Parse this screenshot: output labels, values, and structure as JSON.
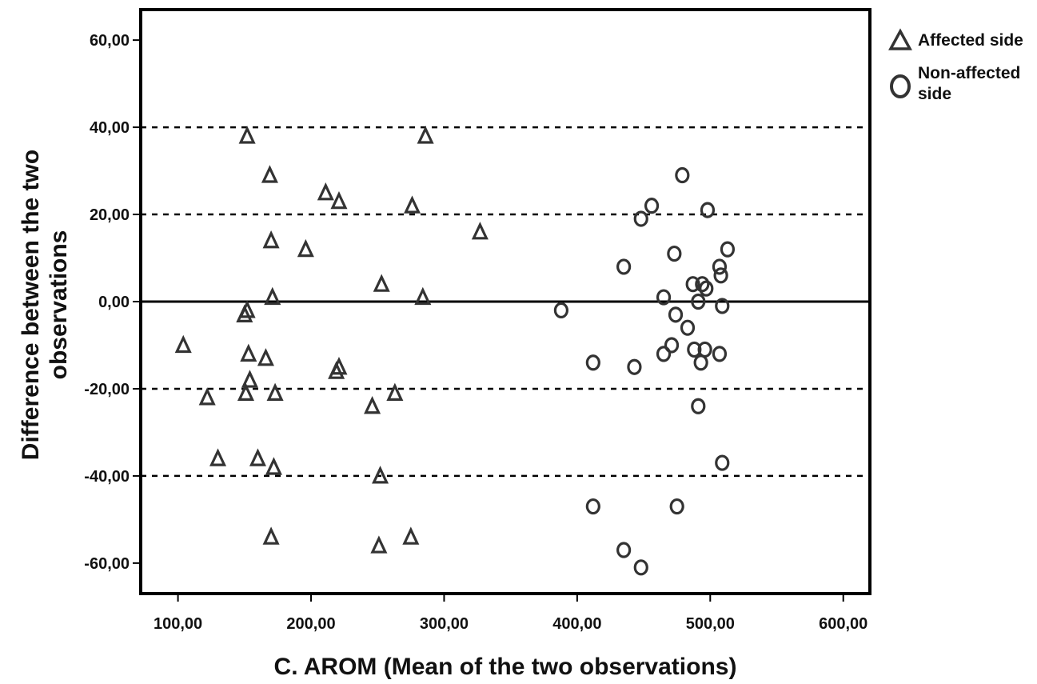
{
  "chart_data": {
    "type": "scatter",
    "xlabel": "C. AROM (Mean of the two observations)",
    "ylabel": [
      "Difference between the two",
      "observations"
    ],
    "xlim": [
      72,
      620
    ],
    "ylim": [
      -67,
      67
    ],
    "x_ticks": [
      100,
      200,
      300,
      400,
      500,
      600
    ],
    "x_tick_labels": [
      "100,00",
      "200,00",
      "300,00",
      "400,00",
      "500,00",
      "600,00"
    ],
    "y_ticks": [
      60,
      40,
      20,
      0,
      -20,
      -40,
      -60
    ],
    "y_tick_labels": [
      "60,00",
      "40,00",
      "20,00",
      "0,00",
      "-20,00",
      "-40,00",
      "-60,00"
    ],
    "reference_lines": [
      {
        "y": 40,
        "style": "dashed"
      },
      {
        "y": 20,
        "style": "dashed"
      },
      {
        "y": 0,
        "style": "solid"
      },
      {
        "y": -20,
        "style": "dashed"
      },
      {
        "y": -40,
        "style": "dashed"
      }
    ],
    "grid": false,
    "legend_position": "outside-top-right",
    "series": [
      {
        "name": "Affected side",
        "marker": "triangle",
        "color": "#333333",
        "points": [
          [
            152,
            38
          ],
          [
            169,
            29
          ],
          [
            211,
            25
          ],
          [
            221,
            23
          ],
          [
            286,
            38
          ],
          [
            276,
            22
          ],
          [
            327,
            16
          ],
          [
            170,
            14
          ],
          [
            196,
            12
          ],
          [
            171,
            1
          ],
          [
            253,
            4
          ],
          [
            284,
            1
          ],
          [
            150,
            -3
          ],
          [
            152,
            -2
          ],
          [
            104,
            -10
          ],
          [
            153,
            -12
          ],
          [
            166,
            -13
          ],
          [
            154,
            -18
          ],
          [
            122,
            -22
          ],
          [
            151,
            -21
          ],
          [
            173,
            -21
          ],
          [
            219,
            -16
          ],
          [
            221,
            -15
          ],
          [
            246,
            -24
          ],
          [
            263,
            -21
          ],
          [
            130,
            -36
          ],
          [
            160,
            -36
          ],
          [
            172,
            -38
          ],
          [
            252,
            -40
          ],
          [
            170,
            -54
          ],
          [
            251,
            -56
          ],
          [
            275,
            -54
          ]
        ]
      },
      {
        "name": "Non-affected side",
        "marker": "circle",
        "color": "#333333",
        "points": [
          [
            479,
            29
          ],
          [
            456,
            22
          ],
          [
            448,
            19
          ],
          [
            498,
            21
          ],
          [
            473,
            11
          ],
          [
            435,
            8
          ],
          [
            507,
            8
          ],
          [
            513,
            12
          ],
          [
            508,
            6
          ],
          [
            487,
            4
          ],
          [
            494,
            4
          ],
          [
            497,
            3
          ],
          [
            465,
            1
          ],
          [
            491,
            0
          ],
          [
            509,
            -1
          ],
          [
            388,
            -2
          ],
          [
            474,
            -3
          ],
          [
            483,
            -6
          ],
          [
            471,
            -10
          ],
          [
            488,
            -11
          ],
          [
            496,
            -11
          ],
          [
            465,
            -12
          ],
          [
            507,
            -12
          ],
          [
            412,
            -14
          ],
          [
            443,
            -15
          ],
          [
            493,
            -14
          ],
          [
            491,
            -24
          ],
          [
            509,
            -37
          ],
          [
            412,
            -47
          ],
          [
            475,
            -47
          ],
          [
            435,
            -57
          ],
          [
            448,
            -61
          ]
        ]
      }
    ]
  }
}
